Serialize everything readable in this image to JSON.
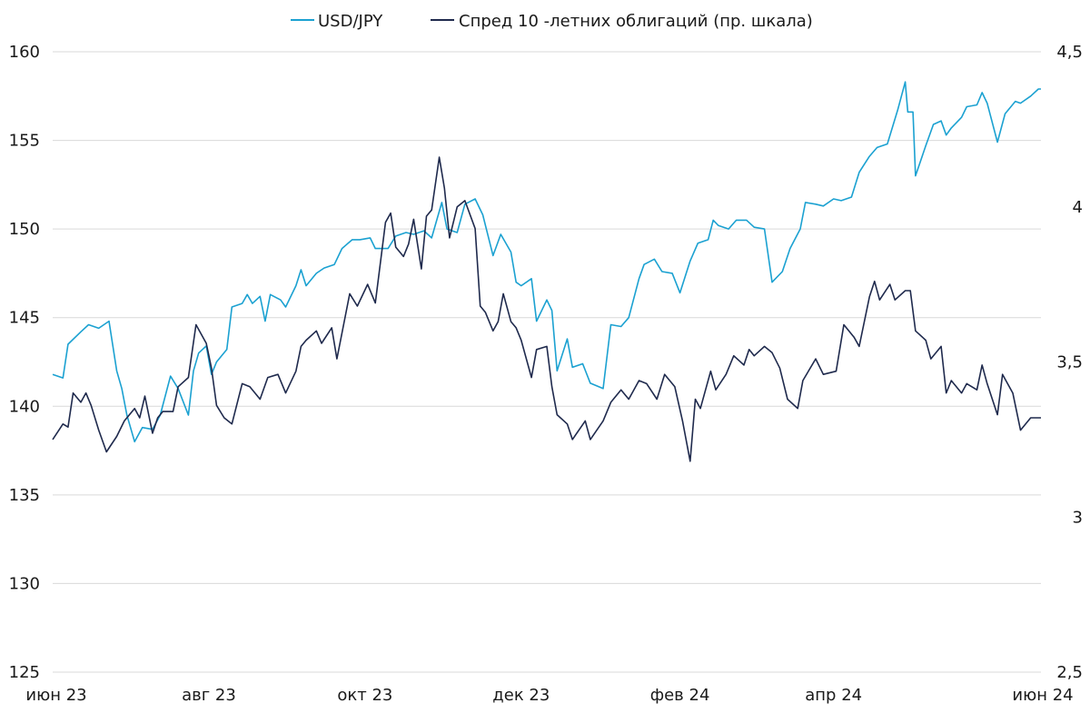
{
  "chart_data": {
    "type": "line",
    "title": "",
    "xlabel": "",
    "ylabel": "",
    "y2label": "",
    "ylim": [
      125,
      160
    ],
    "y2lim": [
      2.5,
      4.5
    ],
    "grid": "horizontal",
    "legend_position": "top-center",
    "x_ticks": [
      "июн 23",
      "авг 23",
      "окт 23",
      "дек 23",
      "фев 24",
      "апр 24",
      "июн 24"
    ],
    "y_ticks": [
      "125",
      "130",
      "135",
      "140",
      "145",
      "150",
      "155",
      "160"
    ],
    "y2_ticks": [
      "2,5",
      "3",
      "3,5",
      "4",
      "4,5"
    ],
    "series": [
      {
        "name": "USD/JPY",
        "axis": "left",
        "color": "#1ba1d1",
        "points": [
          [
            "2023-06-01",
            141.8
          ],
          [
            "2023-06-05",
            141.6
          ],
          [
            "2023-06-07",
            143.5
          ],
          [
            "2023-06-12",
            144.2
          ],
          [
            "2023-06-15",
            144.6
          ],
          [
            "2023-06-19",
            144.4
          ],
          [
            "2023-06-23",
            144.8
          ],
          [
            "2023-06-26",
            142.0
          ],
          [
            "2023-06-28",
            141.0
          ],
          [
            "2023-06-30",
            139.5
          ],
          [
            "2023-07-03",
            138.0
          ],
          [
            "2023-07-06",
            138.8
          ],
          [
            "2023-07-10",
            138.7
          ],
          [
            "2023-07-13",
            139.5
          ],
          [
            "2023-07-17",
            141.7
          ],
          [
            "2023-07-20",
            141.0
          ],
          [
            "2023-07-24",
            139.5
          ],
          [
            "2023-07-26",
            142.0
          ],
          [
            "2023-07-28",
            143.0
          ],
          [
            "2023-07-31",
            143.4
          ],
          [
            "2023-08-02",
            141.8
          ],
          [
            "2023-08-04",
            142.5
          ],
          [
            "2023-08-08",
            143.2
          ],
          [
            "2023-08-10",
            145.6
          ],
          [
            "2023-08-14",
            145.8
          ],
          [
            "2023-08-16",
            146.3
          ],
          [
            "2023-08-18",
            145.8
          ],
          [
            "2023-08-21",
            146.2
          ],
          [
            "2023-08-23",
            144.8
          ],
          [
            "2023-08-25",
            146.3
          ],
          [
            "2023-08-29",
            146.0
          ],
          [
            "2023-08-31",
            145.6
          ],
          [
            "2023-09-04",
            146.8
          ],
          [
            "2023-09-06",
            147.7
          ],
          [
            "2023-09-08",
            146.8
          ],
          [
            "2023-09-12",
            147.5
          ],
          [
            "2023-09-15",
            147.8
          ],
          [
            "2023-09-19",
            148.0
          ],
          [
            "2023-09-22",
            148.9
          ],
          [
            "2023-09-26",
            149.4
          ],
          [
            "2023-09-29",
            149.4
          ],
          [
            "2023-10-03",
            149.5
          ],
          [
            "2023-10-05",
            148.9
          ],
          [
            "2023-10-10",
            148.9
          ],
          [
            "2023-10-13",
            149.6
          ],
          [
            "2023-10-17",
            149.8
          ],
          [
            "2023-10-20",
            149.7
          ],
          [
            "2023-10-24",
            149.9
          ],
          [
            "2023-10-27",
            149.5
          ],
          [
            "2023-10-31",
            151.5
          ],
          [
            "2023-11-02",
            150.0
          ],
          [
            "2023-11-06",
            149.8
          ],
          [
            "2023-11-09",
            151.4
          ],
          [
            "2023-11-13",
            151.7
          ],
          [
            "2023-11-16",
            150.8
          ],
          [
            "2023-11-20",
            148.5
          ],
          [
            "2023-11-23",
            149.7
          ],
          [
            "2023-11-27",
            148.7
          ],
          [
            "2023-11-29",
            147.0
          ],
          [
            "2023-12-01",
            146.8
          ],
          [
            "2023-12-05",
            147.2
          ],
          [
            "2023-12-07",
            144.8
          ],
          [
            "2023-12-11",
            146.0
          ],
          [
            "2023-12-13",
            145.4
          ],
          [
            "2023-12-15",
            142.0
          ],
          [
            "2023-12-19",
            143.8
          ],
          [
            "2023-12-21",
            142.2
          ],
          [
            "2023-12-25",
            142.4
          ],
          [
            "2023-12-28",
            141.3
          ],
          [
            "2024-01-02",
            141.0
          ],
          [
            "2024-01-05",
            144.6
          ],
          [
            "2024-01-09",
            144.5
          ],
          [
            "2024-01-12",
            145.0
          ],
          [
            "2024-01-16",
            147.2
          ],
          [
            "2024-01-18",
            148.0
          ],
          [
            "2024-01-22",
            148.3
          ],
          [
            "2024-01-25",
            147.6
          ],
          [
            "2024-01-29",
            147.5
          ],
          [
            "2024-02-01",
            146.4
          ],
          [
            "2024-02-05",
            148.2
          ],
          [
            "2024-02-08",
            149.2
          ],
          [
            "2024-02-12",
            149.4
          ],
          [
            "2024-02-14",
            150.5
          ],
          [
            "2024-02-16",
            150.2
          ],
          [
            "2024-02-20",
            150.0
          ],
          [
            "2024-02-23",
            150.5
          ],
          [
            "2024-02-27",
            150.5
          ],
          [
            "2024-03-01",
            150.1
          ],
          [
            "2024-03-05",
            150.0
          ],
          [
            "2024-03-08",
            147.0
          ],
          [
            "2024-03-12",
            147.6
          ],
          [
            "2024-03-15",
            148.9
          ],
          [
            "2024-03-19",
            150.0
          ],
          [
            "2024-03-21",
            151.5
          ],
          [
            "2024-03-25",
            151.4
          ],
          [
            "2024-03-28",
            151.3
          ],
          [
            "2024-04-01",
            151.7
          ],
          [
            "2024-04-04",
            151.6
          ],
          [
            "2024-04-08",
            151.8
          ],
          [
            "2024-04-11",
            153.2
          ],
          [
            "2024-04-15",
            154.1
          ],
          [
            "2024-04-18",
            154.6
          ],
          [
            "2024-04-22",
            154.8
          ],
          [
            "2024-04-26",
            156.7
          ],
          [
            "2024-04-29",
            158.3
          ],
          [
            "2024-04-30",
            156.6
          ],
          [
            "2024-05-02",
            156.6
          ],
          [
            "2024-05-03",
            153.0
          ],
          [
            "2024-05-07",
            154.7
          ],
          [
            "2024-05-10",
            155.9
          ],
          [
            "2024-05-13",
            156.1
          ],
          [
            "2024-05-15",
            155.3
          ],
          [
            "2024-05-17",
            155.7
          ],
          [
            "2024-05-21",
            156.3
          ],
          [
            "2024-05-23",
            156.9
          ],
          [
            "2024-05-27",
            157.0
          ],
          [
            "2024-05-29",
            157.7
          ],
          [
            "2024-05-31",
            157.1
          ],
          [
            "2024-06-04",
            154.9
          ],
          [
            "2024-06-07",
            156.5
          ],
          [
            "2024-06-11",
            157.2
          ],
          [
            "2024-06-13",
            157.1
          ],
          [
            "2024-06-17",
            157.5
          ],
          [
            "2024-06-20",
            157.9
          ],
          [
            "2024-06-21",
            157.9
          ]
        ]
      },
      {
        "name": "Спред 10 -летних облигаций (пр. шкала)",
        "axis": "right",
        "color": "#1f2a4d",
        "points": [
          [
            "2023-06-01",
            3.25
          ],
          [
            "2023-06-05",
            3.3
          ],
          [
            "2023-06-07",
            3.29
          ],
          [
            "2023-06-09",
            3.4
          ],
          [
            "2023-06-12",
            3.37
          ],
          [
            "2023-06-14",
            3.4
          ],
          [
            "2023-06-16",
            3.36
          ],
          [
            "2023-06-19",
            3.28
          ],
          [
            "2023-06-22",
            3.21
          ],
          [
            "2023-06-26",
            3.26
          ],
          [
            "2023-06-29",
            3.31
          ],
          [
            "2023-07-03",
            3.35
          ],
          [
            "2023-07-05",
            3.32
          ],
          [
            "2023-07-07",
            3.39
          ],
          [
            "2023-07-10",
            3.27
          ],
          [
            "2023-07-12",
            3.32
          ],
          [
            "2023-07-14",
            3.34
          ],
          [
            "2023-07-18",
            3.34
          ],
          [
            "2023-07-20",
            3.42
          ],
          [
            "2023-07-24",
            3.45
          ],
          [
            "2023-07-27",
            3.62
          ],
          [
            "2023-07-31",
            3.56
          ],
          [
            "2023-08-02",
            3.48
          ],
          [
            "2023-08-04",
            3.36
          ],
          [
            "2023-08-07",
            3.32
          ],
          [
            "2023-08-10",
            3.3
          ],
          [
            "2023-08-14",
            3.43
          ],
          [
            "2023-08-17",
            3.42
          ],
          [
            "2023-08-21",
            3.38
          ],
          [
            "2023-08-24",
            3.45
          ],
          [
            "2023-08-28",
            3.46
          ],
          [
            "2023-08-31",
            3.4
          ],
          [
            "2023-09-04",
            3.47
          ],
          [
            "2023-09-06",
            3.55
          ],
          [
            "2023-09-08",
            3.57
          ],
          [
            "2023-09-12",
            3.6
          ],
          [
            "2023-09-14",
            3.56
          ],
          [
            "2023-09-18",
            3.61
          ],
          [
            "2023-09-20",
            3.51
          ],
          [
            "2023-09-25",
            3.72
          ],
          [
            "2023-09-28",
            3.68
          ],
          [
            "2023-10-02",
            3.75
          ],
          [
            "2023-10-05",
            3.69
          ],
          [
            "2023-10-09",
            3.95
          ],
          [
            "2023-10-11",
            3.98
          ],
          [
            "2023-10-13",
            3.87
          ],
          [
            "2023-10-16",
            3.84
          ],
          [
            "2023-10-18",
            3.88
          ],
          [
            "2023-10-20",
            3.96
          ],
          [
            "2023-10-23",
            3.8
          ],
          [
            "2023-10-25",
            3.97
          ],
          [
            "2023-10-27",
            3.99
          ],
          [
            "2023-10-30",
            4.16
          ],
          [
            "2023-11-01",
            4.06
          ],
          [
            "2023-11-03",
            3.9
          ],
          [
            "2023-11-06",
            4.0
          ],
          [
            "2023-11-09",
            4.02
          ],
          [
            "2023-11-13",
            3.93
          ],
          [
            "2023-11-15",
            3.68
          ],
          [
            "2023-11-17",
            3.66
          ],
          [
            "2023-11-20",
            3.6
          ],
          [
            "2023-11-22",
            3.63
          ],
          [
            "2023-11-24",
            3.72
          ],
          [
            "2023-11-27",
            3.63
          ],
          [
            "2023-11-29",
            3.61
          ],
          [
            "2023-12-01",
            3.57
          ],
          [
            "2023-12-05",
            3.45
          ],
          [
            "2023-12-07",
            3.54
          ],
          [
            "2023-12-11",
            3.55
          ],
          [
            "2023-12-13",
            3.42
          ],
          [
            "2023-12-15",
            3.33
          ],
          [
            "2023-12-19",
            3.3
          ],
          [
            "2023-12-21",
            3.25
          ],
          [
            "2023-12-26",
            3.31
          ],
          [
            "2023-12-28",
            3.25
          ],
          [
            "2024-01-02",
            3.31
          ],
          [
            "2024-01-05",
            3.37
          ],
          [
            "2024-01-09",
            3.41
          ],
          [
            "2024-01-12",
            3.38
          ],
          [
            "2024-01-16",
            3.44
          ],
          [
            "2024-01-19",
            3.43
          ],
          [
            "2024-01-23",
            3.38
          ],
          [
            "2024-01-26",
            3.46
          ],
          [
            "2024-01-30",
            3.42
          ],
          [
            "2024-02-02",
            3.31
          ],
          [
            "2024-02-05",
            3.18
          ],
          [
            "2024-02-07",
            3.38
          ],
          [
            "2024-02-09",
            3.35
          ],
          [
            "2024-02-13",
            3.47
          ],
          [
            "2024-02-15",
            3.41
          ],
          [
            "2024-02-19",
            3.46
          ],
          [
            "2024-02-22",
            3.52
          ],
          [
            "2024-02-26",
            3.49
          ],
          [
            "2024-02-28",
            3.54
          ],
          [
            "2024-03-01",
            3.52
          ],
          [
            "2024-03-05",
            3.55
          ],
          [
            "2024-03-08",
            3.53
          ],
          [
            "2024-03-11",
            3.48
          ],
          [
            "2024-03-14",
            3.38
          ],
          [
            "2024-03-18",
            3.35
          ],
          [
            "2024-03-20",
            3.44
          ],
          [
            "2024-03-25",
            3.51
          ],
          [
            "2024-03-28",
            3.46
          ],
          [
            "2024-04-02",
            3.47
          ],
          [
            "2024-04-05",
            3.62
          ],
          [
            "2024-04-09",
            3.58
          ],
          [
            "2024-04-11",
            3.55
          ],
          [
            "2024-04-15",
            3.71
          ],
          [
            "2024-04-17",
            3.76
          ],
          [
            "2024-04-19",
            3.7
          ],
          [
            "2024-04-23",
            3.75
          ],
          [
            "2024-04-25",
            3.7
          ],
          [
            "2024-04-29",
            3.73
          ],
          [
            "2024-05-01",
            3.73
          ],
          [
            "2024-05-03",
            3.6
          ],
          [
            "2024-05-07",
            3.57
          ],
          [
            "2024-05-09",
            3.51
          ],
          [
            "2024-05-13",
            3.55
          ],
          [
            "2024-05-15",
            3.4
          ],
          [
            "2024-05-17",
            3.44
          ],
          [
            "2024-05-21",
            3.4
          ],
          [
            "2024-05-23",
            3.43
          ],
          [
            "2024-05-27",
            3.41
          ],
          [
            "2024-05-29",
            3.49
          ],
          [
            "2024-05-31",
            3.43
          ],
          [
            "2024-06-04",
            3.33
          ],
          [
            "2024-06-06",
            3.46
          ],
          [
            "2024-06-10",
            3.4
          ],
          [
            "2024-06-13",
            3.28
          ],
          [
            "2024-06-17",
            3.32
          ],
          [
            "2024-06-21",
            3.32
          ]
        ]
      }
    ]
  }
}
